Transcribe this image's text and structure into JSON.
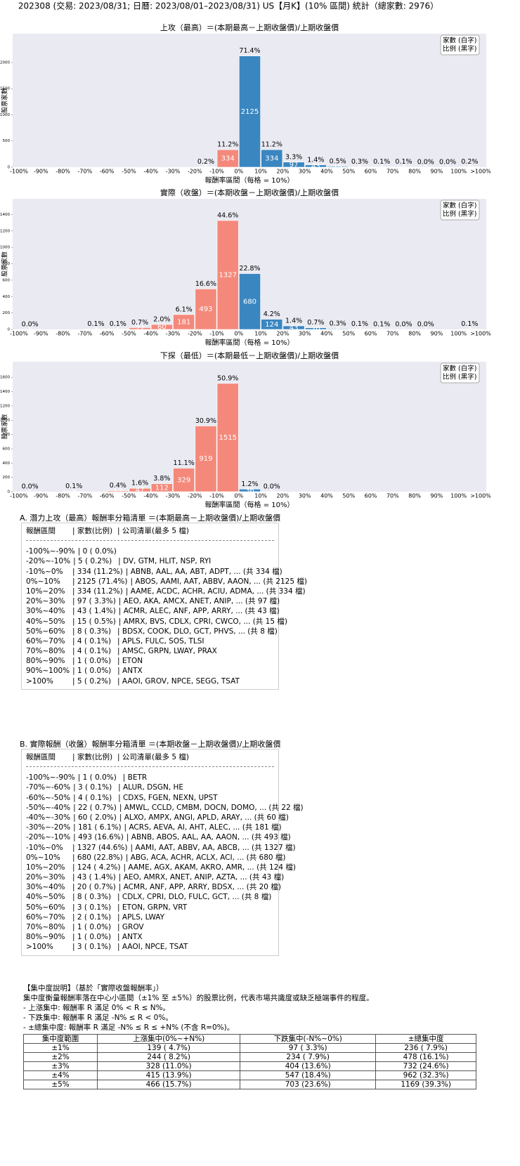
{
  "header": "202308 (交易: 2023/08/31; 日曆: 2023/08/01–2023/08/31) US【月K】(10% 區間) 統計（總家數: 2976）",
  "chart_data": [
    {
      "type": "bar",
      "title": "上攻（最高）＝(本期最高－上期收盤價)/上期收盤價",
      "xlabel": "報酬率區間（每格 = 10%）",
      "ylabel": "股票家數",
      "legend": [
        "家數 (白字)",
        "比例 (黑字)"
      ],
      "bin_edges": [
        "-100%",
        "-90%",
        "-80%",
        "-70%",
        "-60%",
        "-50%",
        "-40%",
        "-30%",
        "-20%",
        "-10%",
        "0%",
        "10%",
        "20%",
        "30%",
        "40%",
        "50%",
        "60%",
        "70%",
        "80%",
        "90%",
        "100%",
        ">100%"
      ],
      "values": [
        0,
        0,
        0,
        0,
        0,
        0,
        0,
        0,
        5,
        334,
        2125,
        334,
        97,
        43,
        15,
        8,
        4,
        4,
        1,
        1,
        5
      ],
      "pct_labels": [
        null,
        null,
        null,
        null,
        null,
        null,
        null,
        null,
        "0.2%",
        "11.2%",
        "71.4%",
        "11.2%",
        "3.3%",
        "1.4%",
        "0.5%",
        "0.3%",
        "0.1%",
        "0.1%",
        "0.0%",
        "0.0%",
        "0.2%"
      ],
      "colors": [
        "#f4897b",
        "#f4897b",
        "#f4897b",
        "#f4897b",
        "#f4897b",
        "#f4897b",
        "#f4897b",
        "#f4897b",
        "#f4897b",
        "#f4897b",
        "#3a86c0",
        "#3a86c0",
        "#3a86c0",
        "#3a86c0",
        "#3a86c0",
        "#3a86c0",
        "#3a86c0",
        "#3a86c0",
        "#3a86c0",
        "#3a86c0",
        "#3a86c0"
      ],
      "ylim": [
        0,
        2550
      ],
      "yticks": [
        0,
        500,
        1000,
        1500,
        2000
      ]
    },
    {
      "type": "bar",
      "title": "實際（收盤）＝(本期收盤－上期收盤價)/上期收盤價",
      "xlabel": "報酬率區間（每格 = 10%）",
      "ylabel": "股票家數",
      "legend": [
        "家數 (白字)",
        "比例 (黑字)"
      ],
      "bin_edges": [
        "-100%",
        "-90%",
        "-80%",
        "-70%",
        "-60%",
        "-50%",
        "-40%",
        "-30%",
        "-20%",
        "-10%",
        "0%",
        "10%",
        "20%",
        "30%",
        "40%",
        "50%",
        "60%",
        "70%",
        "80%",
        "90%",
        "100%",
        ">100%"
      ],
      "values": [
        1,
        0,
        0,
        3,
        4,
        22,
        60,
        181,
        493,
        1327,
        680,
        124,
        43,
        20,
        8,
        3,
        2,
        1,
        1,
        0,
        3
      ],
      "pct_labels": [
        "0.0%",
        null,
        null,
        "0.1%",
        "0.1%",
        "0.7%",
        "2.0%",
        "6.1%",
        "16.6%",
        "44.6%",
        "22.8%",
        "4.2%",
        "1.4%",
        "0.7%",
        "0.3%",
        "0.1%",
        "0.1%",
        "0.0%",
        "0.0%",
        null,
        "0.1%"
      ],
      "colors": [
        "#f4897b",
        "#f4897b",
        "#f4897b",
        "#f4897b",
        "#f4897b",
        "#f4897b",
        "#f4897b",
        "#f4897b",
        "#f4897b",
        "#f4897b",
        "#3a86c0",
        "#3a86c0",
        "#3a86c0",
        "#3a86c0",
        "#3a86c0",
        "#3a86c0",
        "#3a86c0",
        "#3a86c0",
        "#3a86c0",
        "#3a86c0",
        "#3a86c0"
      ],
      "ylim": [
        0,
        1592
      ],
      "yticks": [
        0,
        200,
        400,
        600,
        800,
        1000,
        1200,
        1400
      ]
    },
    {
      "type": "bar",
      "title": "下探（最低）＝(本期最低－上期收盤價)/上期收盤價",
      "xlabel": "報酬率區間（每格 = 10%）",
      "ylabel": "股票家數",
      "legend": [
        "家數 (白字)",
        "比例 (黑字)"
      ],
      "bin_edges": [
        "-100%",
        "-90%",
        "-80%",
        "-70%",
        "-60%",
        "-50%",
        "-40%",
        "-30%",
        "-20%",
        "-10%",
        "0%",
        "10%",
        "20%",
        "30%",
        "40%",
        "50%",
        "60%",
        "70%",
        "80%",
        "90%",
        "100%",
        ">100%"
      ],
      "values": [
        1,
        0,
        3,
        0,
        13,
        47,
        112,
        329,
        919,
        1515,
        36,
        1,
        0,
        0,
        0,
        0,
        0,
        0,
        0,
        0,
        0
      ],
      "pct_labels": [
        "0.0%",
        null,
        "0.1%",
        null,
        "0.4%",
        "1.6%",
        "3.8%",
        "11.1%",
        "30.9%",
        "50.9%",
        "1.2%",
        "0.0%",
        null,
        null,
        null,
        null,
        null,
        null,
        null,
        null,
        null
      ],
      "colors": [
        "#f4897b",
        "#f4897b",
        "#f4897b",
        "#f4897b",
        "#f4897b",
        "#f4897b",
        "#f4897b",
        "#f4897b",
        "#f4897b",
        "#f4897b",
        "#3a86c0",
        "#3a86c0",
        "#3a86c0",
        "#3a86c0",
        "#3a86c0",
        "#3a86c0",
        "#3a86c0",
        "#3a86c0",
        "#3a86c0",
        "#3a86c0",
        "#3a86c0"
      ],
      "ylim": [
        0,
        1818
      ],
      "yticks": [
        0,
        200,
        400,
        600,
        800,
        1000,
        1200,
        1400,
        1600
      ]
    }
  ],
  "table_a": {
    "title": "A. 潛力上攻（最高）報酬率分箱清單 ＝(本期最高－上期收盤價)/上期收盤價",
    "header": [
      "報酬區間",
      "家數(比例)",
      "公司清單(最多 5 檔)"
    ],
    "rows": [
      [
        "-100%~-90%",
        "0 ( 0.0%)"
      ],
      [
        "-20%~-10%",
        "5 ( 0.2%)",
        "DV, GTM, HLIT, NSP, RYI"
      ],
      [
        "-10%~0%",
        "334 (11.2%)",
        "ABNB, AAL, AA, ABT, ADPT, ... (共 334 檔)"
      ],
      [
        "0%~10%",
        "2125 (71.4%)",
        "ABOS, AAMI, AAT, ABBV, AAON, ... (共 2125 檔)"
      ],
      [
        "10%~20%",
        "334 (11.2%)",
        "AAME, ACDC, ACHR, ACIU, ADMA, ... (共 334 檔)"
      ],
      [
        "20%~30%",
        "97 ( 3.3%)",
        "AEO, AKA, AMCX, ANET, ANIP, ... (共 97 檔)"
      ],
      [
        "30%~40%",
        "43 ( 1.4%)",
        "ACMR, ALEC, ANF, APP, ARRY, ... (共 43 檔)"
      ],
      [
        "40%~50%",
        "15 ( 0.5%)",
        "AMRX, BVS, CDLX, CPRI, CWCO, ... (共 15 檔)"
      ],
      [
        "50%~60%",
        "8 ( 0.3%)",
        "BDSX, COOK, DLO, GCT, PHVS, ... (共 8 檔)"
      ],
      [
        "60%~70%",
        "4 ( 0.1%)",
        "APLS, FULC, SOS, TLSI"
      ],
      [
        "70%~80%",
        "4 ( 0.1%)",
        "AMSC, GRPN, LWAY, PRAX"
      ],
      [
        "80%~90%",
        "1 ( 0.0%)",
        "ETON"
      ],
      [
        "90%~100%",
        "1 ( 0.0%)",
        "ANTX"
      ],
      [
        ">100%",
        "5 ( 0.2%)",
        "AAOI, GROV, NPCE, SEGG, TSAT"
      ]
    ]
  },
  "table_b": {
    "title": "B. 實際報酬（收盤）報酬率分箱清單 ＝(本期收盤－上期收盤價)/上期收盤價",
    "header": [
      "報酬區間",
      "家數(比例)",
      "公司清單(最多 5 檔)"
    ],
    "rows": [
      [
        "-100%~-90%",
        "1 ( 0.0%)",
        "BETR"
      ],
      [
        "-70%~-60%",
        "3 ( 0.1%)",
        "ALUR, DSGN, HE"
      ],
      [
        "-60%~-50%",
        "4 ( 0.1%)",
        "CDXS, FGEN, NEXN, UPST"
      ],
      [
        "-50%~-40%",
        "22 ( 0.7%)",
        "AMWL, CCLD, CMBM, DOCN, DOMO, ... (共 22 檔)"
      ],
      [
        "-40%~-30%",
        "60 ( 2.0%)",
        "ALXO, AMPX, ANGI, APLD, ARAY, ... (共 60 檔)"
      ],
      [
        "-30%~-20%",
        "181 ( 6.1%)",
        "ACRS, AEVA, AI, AHT, ALEC, ... (共 181 檔)"
      ],
      [
        "-20%~-10%",
        "493 (16.6%)",
        "ABNB, ABOS, AAL, AA, AAON, ... (共 493 檔)"
      ],
      [
        "-10%~0%",
        "1327 (44.6%)",
        "AAMI, AAT, ABBV, AA, ABCB, ... (共 1327 檔)"
      ],
      [
        "0%~10%",
        "680 (22.8%)",
        "ABG, ACA, ACHR, ACLX, ACI, ... (共 680 檔)"
      ],
      [
        "10%~20%",
        "124 ( 4.2%)",
        "AAME, AGX, AKAM, AKRO, AMR, ... (共 124 檔)"
      ],
      [
        "20%~30%",
        "43 ( 1.4%)",
        "AEO, AMRX, ANET, ANIP, AZTA, ... (共 43 檔)"
      ],
      [
        "30%~40%",
        "20 ( 0.7%)",
        "ACMR, ANF, APP, ARRY, BDSX, ... (共 20 檔)"
      ],
      [
        "40%~50%",
        "8 ( 0.3%)",
        "CDLX, CPRI, DLO, FULC, GCT, ... (共 8 檔)"
      ],
      [
        "50%~60%",
        "3 ( 0.1%)",
        "ETON, GRPN, VRT"
      ],
      [
        "60%~70%",
        "2 ( 0.1%)",
        "APLS, LWAY"
      ],
      [
        "70%~80%",
        "1 ( 0.0%)",
        "GROV"
      ],
      [
        "80%~90%",
        "1 ( 0.0%)",
        "ANTX"
      ],
      [
        ">100%",
        "3 ( 0.1%)",
        "AAOI, NPCE, TSAT"
      ]
    ]
  },
  "concentration": {
    "title": "【集中度說明】（基於「實際收盤報酬率」）",
    "lines": [
      "集中度衡量報酬率落在中心小區間（±1% 至 ±5%）的股票比例，代表市場共識度或缺乏極端事件的程度。",
      " - 上漲集中: 報酬率 R 滿足 0% < R ≤ N%。",
      " - 下跌集中: 報酬率 R 滿足 -N% ≤ R < 0%。",
      " - ±總集中度: 報酬率 R 滿足 -N% ≤ R ≤ +N% (不含 R=0%)。"
    ],
    "header": [
      "集中度範圍",
      "上漲集中(0%~+N%)",
      "下跌集中(-N%~0%)",
      "±總集中度"
    ],
    "rows": [
      [
        "±1%",
        "139 ( 4.7%)",
        "97 ( 3.3%)",
        "236 ( 7.9%)"
      ],
      [
        "±2%",
        "244 ( 8.2%)",
        "234 ( 7.9%)",
        "478 (16.1%)"
      ],
      [
        "±3%",
        "328 (11.0%)",
        "404 (13.6%)",
        "732 (24.6%)"
      ],
      [
        "±4%",
        "415 (13.9%)",
        "547 (18.4%)",
        "962 (32.3%)"
      ],
      [
        "±5%",
        "466 (15.7%)",
        "703 (23.6%)",
        "1169 (39.3%)"
      ]
    ]
  }
}
